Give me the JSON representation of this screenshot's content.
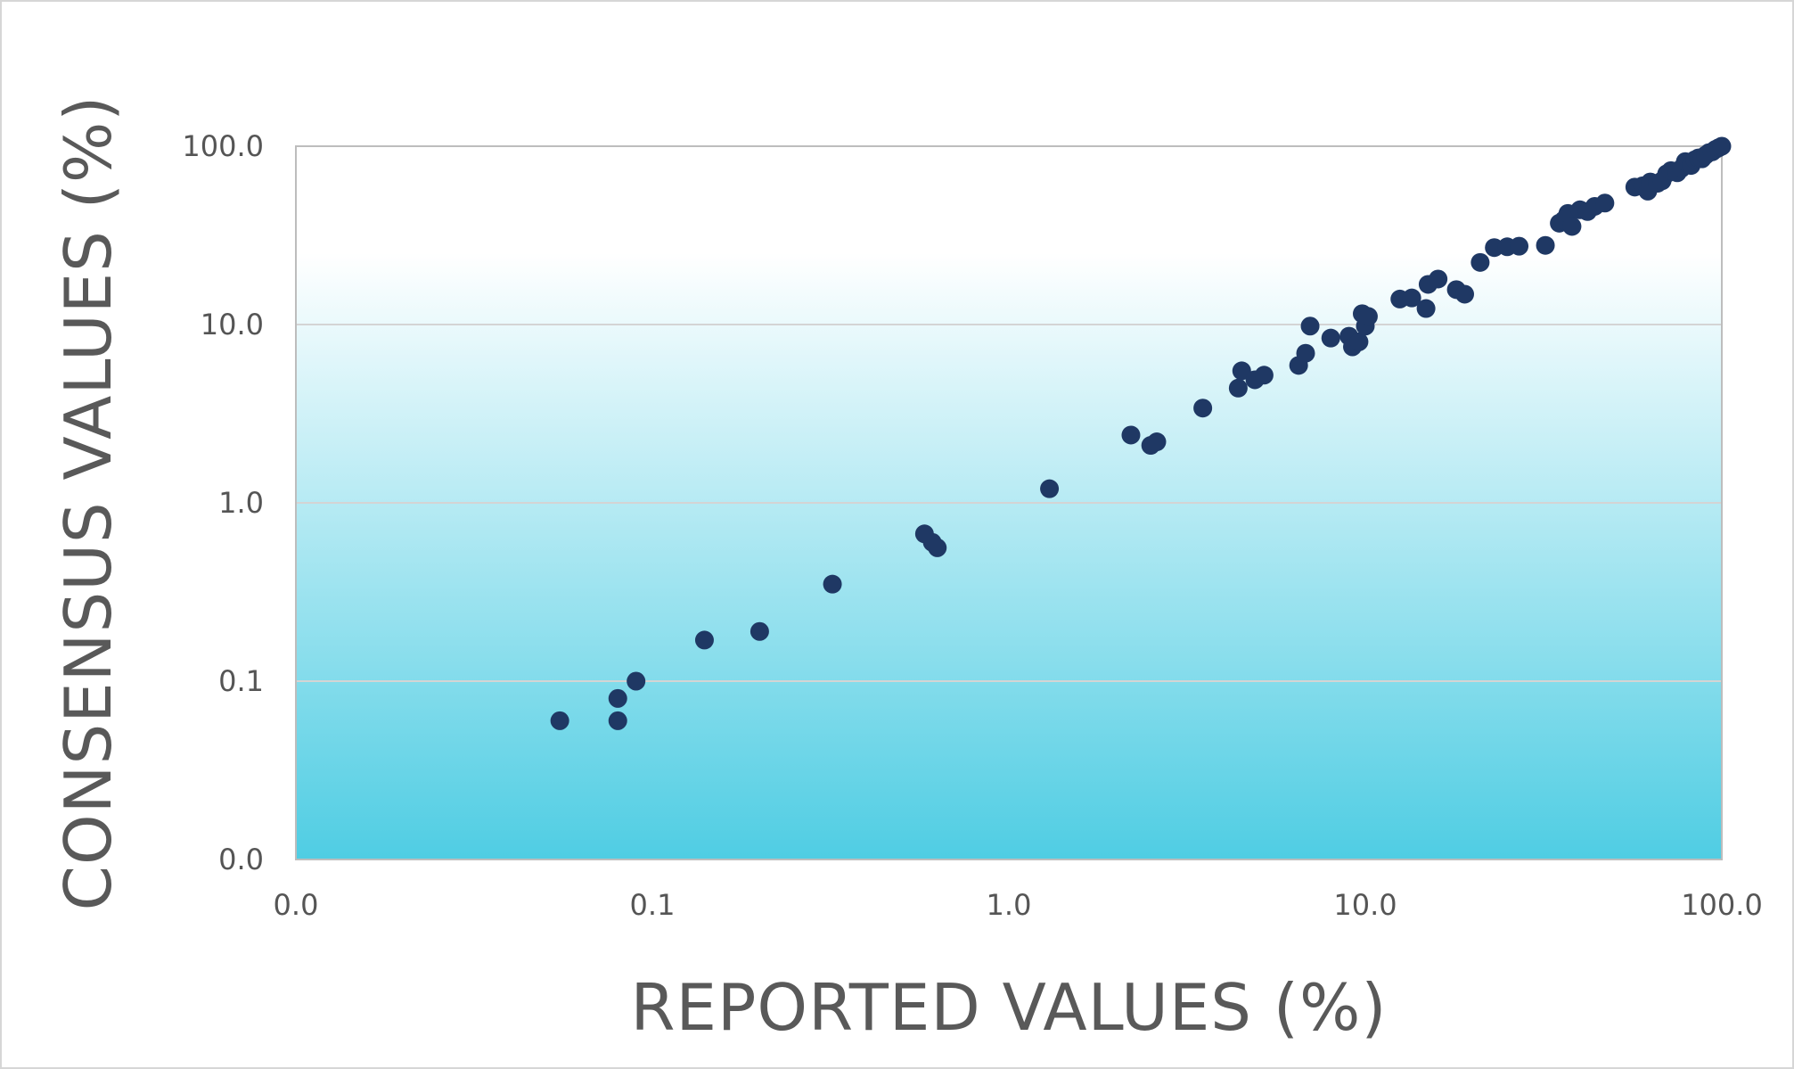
{
  "chart_data": {
    "type": "scatter",
    "xlabel": "REPORTED VALUES (%)",
    "ylabel": "CONSENSUS VALUES (%)",
    "x_scale": "log",
    "y_scale": "log",
    "xlim": [
      0.01,
      100
    ],
    "ylim": [
      0.01,
      100
    ],
    "x_ticks": [
      0.01,
      0.1,
      1,
      10,
      100
    ],
    "y_ticks": [
      0.01,
      0.1,
      1,
      10,
      100
    ],
    "x_tick_labels": [
      "0.0",
      "0.1",
      "1.0",
      "10.0",
      "100.0"
    ],
    "y_tick_labels": [
      "0.0",
      "0.1",
      "1.0",
      "10.0",
      "100.0"
    ],
    "grid": "horizontal",
    "legend": "none",
    "background_gradient": [
      "#ffffff",
      "#4fcde3"
    ],
    "marker_color": "#1f3864",
    "series": [
      {
        "points": [
          [
            0.055,
            0.06
          ],
          [
            0.08,
            0.08
          ],
          [
            0.08,
            0.06
          ],
          [
            0.09,
            0.1
          ],
          [
            0.14,
            0.17
          ],
          [
            0.2,
            0.19
          ],
          [
            0.32,
            0.35
          ],
          [
            0.58,
            0.67
          ],
          [
            0.61,
            0.6
          ],
          [
            0.63,
            0.56
          ],
          [
            1.3,
            1.2
          ],
          [
            2.2,
            2.4
          ],
          [
            2.5,
            2.1
          ],
          [
            2.6,
            2.2
          ],
          [
            3.5,
            3.4
          ],
          [
            4.4,
            4.4
          ],
          [
            4.5,
            5.5
          ],
          [
            4.9,
            4.9
          ],
          [
            5.2,
            5.2
          ],
          [
            6.5,
            5.9
          ],
          [
            6.8,
            6.9
          ],
          [
            7.0,
            9.8
          ],
          [
            8.0,
            8.4
          ],
          [
            9.0,
            8.6
          ],
          [
            9.2,
            7.5
          ],
          [
            9.6,
            8.0
          ],
          [
            9.8,
            11.5
          ],
          [
            10.0,
            9.8
          ],
          [
            10.2,
            11.1
          ],
          [
            12.5,
            13.9
          ],
          [
            13.5,
            14.1
          ],
          [
            14.8,
            12.3
          ],
          [
            15.0,
            16.8
          ],
          [
            16.0,
            18.0
          ],
          [
            18.0,
            15.7
          ],
          [
            19.0,
            14.8
          ],
          [
            21.0,
            22.3
          ],
          [
            23.0,
            27.0
          ],
          [
            25.0,
            27.3
          ],
          [
            27.0,
            27.5
          ],
          [
            32.0,
            27.8
          ],
          [
            35.0,
            37.0
          ],
          [
            36.0,
            38.5
          ],
          [
            37.0,
            42.0
          ],
          [
            38.0,
            35.5
          ],
          [
            40.0,
            44.0
          ],
          [
            42.0,
            43.0
          ],
          [
            44.0,
            46.0
          ],
          [
            47.0,
            48.0
          ],
          [
            57.0,
            59.0
          ],
          [
            60.0,
            60.0
          ],
          [
            62.0,
            56.0
          ],
          [
            63.0,
            63.0
          ],
          [
            66.0,
            62.0
          ],
          [
            68.0,
            64.0
          ],
          [
            70.0,
            70.0
          ],
          [
            72.0,
            73.0
          ],
          [
            75.0,
            71.0
          ],
          [
            77.0,
            75.0
          ],
          [
            79.0,
            82.0
          ],
          [
            82.0,
            78.0
          ],
          [
            84.0,
            84.0
          ],
          [
            86.0,
            86.0
          ],
          [
            88.0,
            85.0
          ],
          [
            90.0,
            89.0
          ],
          [
            92.0,
            92.0
          ],
          [
            94.0,
            93.0
          ],
          [
            96.0,
            96.0
          ],
          [
            98.0,
            98.0
          ],
          [
            100.0,
            100.0
          ]
        ]
      }
    ]
  }
}
